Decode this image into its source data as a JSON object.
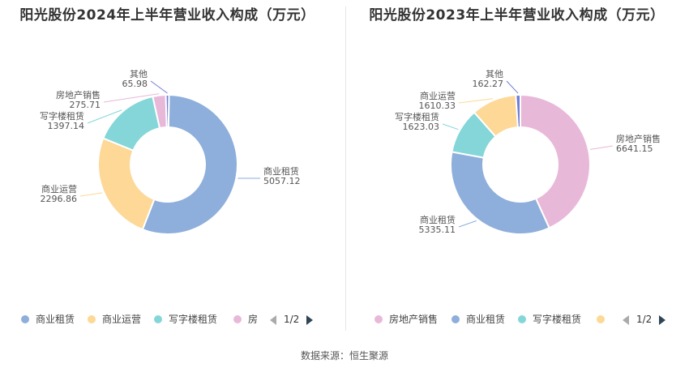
{
  "colors": {
    "商业租赁": "#8eaedb",
    "商业运营": "#fdd896",
    "写字楼租赁": "#84d6d8",
    "房地产销售": "#e8b8d9",
    "其他": "#6f7ed8"
  },
  "chart_data": [
    {
      "type": "pie",
      "title": "阳光股份2024年上半年营业收入构成（万元）",
      "slices": [
        {
          "name": "商业租赁",
          "value": 5057.12,
          "label": "5057.12"
        },
        {
          "name": "商业运营",
          "value": 2296.86,
          "label": "2296.86"
        },
        {
          "name": "写字楼租赁",
          "value": 1397.14,
          "label": "1397.14"
        },
        {
          "name": "房地产销售",
          "value": 275.71,
          "label": "275.71"
        },
        {
          "name": "其他",
          "value": 65.98,
          "label": "65.98"
        }
      ],
      "legend": {
        "items": [
          "商业租赁",
          "商业运营",
          "写字楼租赁",
          "房"
        ],
        "page": "1/2",
        "placement": "bottom"
      }
    },
    {
      "type": "pie",
      "title": "阳光股份2023年上半年营业收入构成（万元）",
      "slices": [
        {
          "name": "房地产销售",
          "value": 6641.15,
          "label": "6641.15"
        },
        {
          "name": "商业租赁",
          "value": 5335.11,
          "label": "5335.11"
        },
        {
          "name": "写字楼租赁",
          "value": 1623.03,
          "label": "1623.03"
        },
        {
          "name": "商业运营",
          "value": 1610.33,
          "label": "1610.33"
        },
        {
          "name": "其他",
          "value": 162.27,
          "label": "162.27"
        }
      ],
      "legend": {
        "items": [
          "房地产销售",
          "商业租赁",
          "写字楼租赁",
          ""
        ],
        "page": "1/2",
        "placement": "bottom"
      }
    }
  ],
  "footer": {
    "source": "数据来源：恒生聚源"
  }
}
